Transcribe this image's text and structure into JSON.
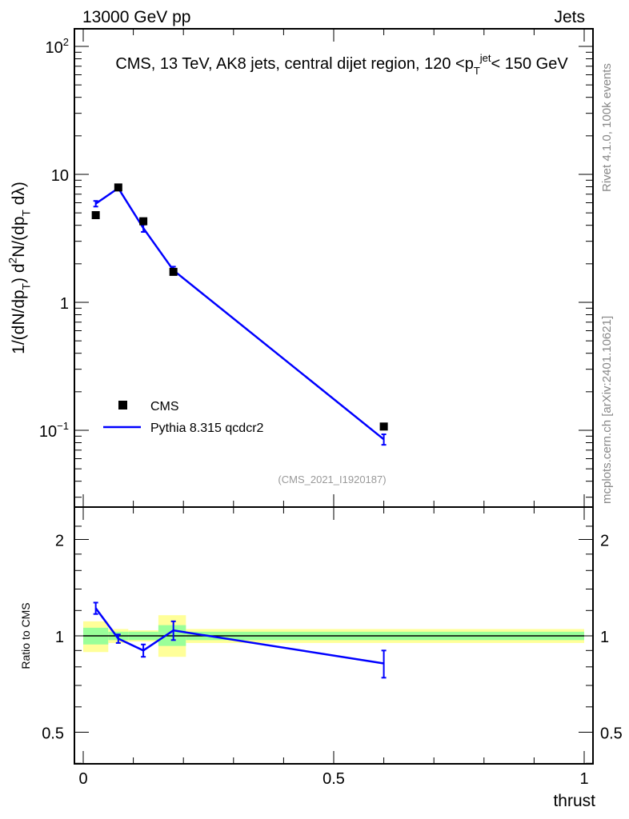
{
  "header": {
    "left": "13000 GeV pp",
    "right": "Jets"
  },
  "side": {
    "rivet": "Rivet 4.1.0,  100k events",
    "mcplots": "mcplots.cern.ch [arXiv:2401.10621]"
  },
  "chart_data": [
    {
      "type": "scatter",
      "title": "CMS, 13 TeV, AK8 jets, central dijet region, 120 <p_T^{jet}< 150 GeV",
      "ylabel": "1/(dN/dp_T) d^2N/(dp_T dλ)",
      "yscale": "log",
      "ylim": [
        0.025,
        137
      ],
      "xlim": [
        -0.02,
        1.02
      ],
      "ytick_labels": [
        "10^{-1}",
        "1",
        "10",
        "10^{2}"
      ],
      "bins": [
        [
          0,
          0.05
        ],
        [
          0.05,
          0.09
        ],
        [
          0.09,
          0.15
        ],
        [
          0.15,
          0.205
        ],
        [
          0.205,
          1.0
        ]
      ],
      "x": [
        0.025,
        0.07,
        0.12,
        0.18,
        0.6
      ],
      "series": [
        {
          "name": "CMS",
          "values": [
            4.8,
            7.9,
            4.3,
            1.73,
            0.107
          ],
          "color": "#000000"
        },
        {
          "name": "Pythia 8.315 qcdcr2",
          "values": [
            5.9,
            7.8,
            3.8,
            1.78,
            0.085
          ],
          "errors": [
            0.3,
            0.3,
            0.25,
            0.12,
            0.008
          ],
          "color": "#0000ff"
        }
      ],
      "legend": "middle-left",
      "watermark": "(CMS_2021_I1920187)"
    },
    {
      "type": "line",
      "ylabel": "Ratio to CMS",
      "xlabel": "thrust",
      "yscale": "log",
      "ylim": [
        0.38,
        2.3
      ],
      "ytick_labels": [
        "0.5",
        "1",
        "2"
      ],
      "xtick_labels": [
        "0",
        "0.5",
        "1"
      ],
      "x": [
        0.025,
        0.07,
        0.12,
        0.18,
        0.6
      ],
      "values": [
        1.22,
        0.98,
        0.9,
        1.04,
        0.82
      ],
      "errors": [
        0.05,
        0.03,
        0.04,
        0.07,
        0.08
      ],
      "band_stat": [
        [
          0.94,
          1.06
        ],
        [
          0.97,
          1.03
        ],
        [
          0.97,
          1.03
        ],
        [
          0.93,
          1.08
        ],
        [
          0.97,
          1.03
        ]
      ],
      "band_total": [
        [
          0.89,
          1.11
        ],
        [
          0.95,
          1.05
        ],
        [
          0.96,
          1.04
        ],
        [
          0.86,
          1.16
        ],
        [
          0.95,
          1.05
        ]
      ],
      "colors": {
        "stat": "#99ff99",
        "total": "#ffff99",
        "mc": "#0000ff"
      }
    }
  ]
}
